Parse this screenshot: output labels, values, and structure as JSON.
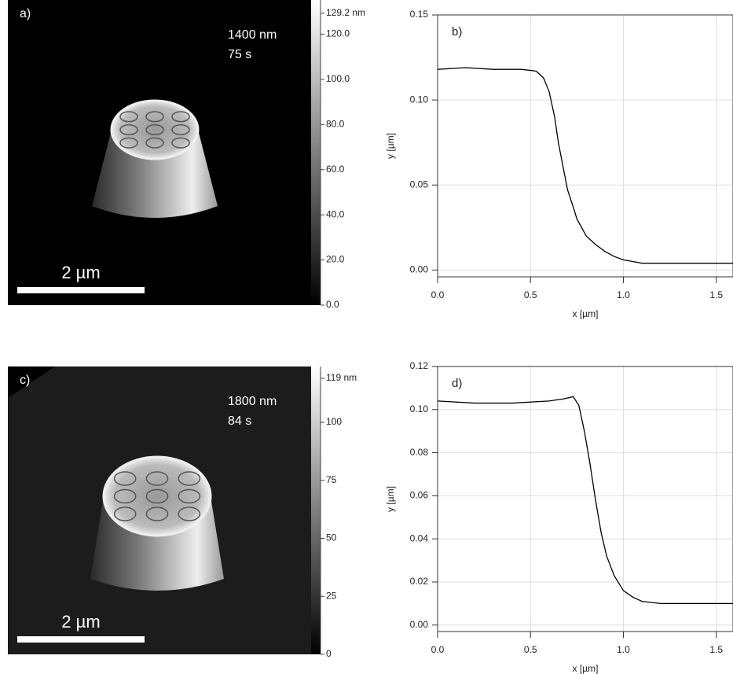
{
  "chart_data": [
    {
      "type": "image",
      "label": "a)",
      "annotations": [
        "1400 nm",
        "75 s"
      ],
      "scale_bar": "2 µm",
      "zlim": [
        0,
        129.2
      ],
      "zticks": [
        {
          "value": 0,
          "label": "0.0"
        },
        {
          "value": 20,
          "label": "20.0"
        },
        {
          "value": 40,
          "label": "40.0"
        },
        {
          "value": 60,
          "label": "60.0"
        },
        {
          "value": 80,
          "label": "80.0"
        },
        {
          "value": 100,
          "label": "100.0"
        },
        {
          "value": 120,
          "label": "120.0"
        },
        {
          "value": 129.2,
          "label": "129.2 nm"
        }
      ]
    },
    {
      "type": "line",
      "label": "b)",
      "xlabel": "x [µm]",
      "ylabel": "y [µm]",
      "color": "#000000",
      "grid": true,
      "x": [
        0,
        0.15,
        0.3,
        0.45,
        0.53,
        0.57,
        0.6,
        0.63,
        0.65,
        0.68,
        0.7,
        0.73,
        0.75,
        0.8,
        0.85,
        0.9,
        0.95,
        1.0,
        1.05,
        1.1,
        1.3,
        1.59
      ],
      "values": [
        0.118,
        0.119,
        0.118,
        0.118,
        0.117,
        0.113,
        0.105,
        0.09,
        0.075,
        0.058,
        0.047,
        0.037,
        0.03,
        0.02,
        0.015,
        0.011,
        0.008,
        0.006,
        0.005,
        0.004,
        0.004,
        0.004
      ],
      "xlim": [
        0,
        1.59
      ],
      "ylim": [
        -0.004,
        0.15
      ],
      "xticks": [
        {
          "value": 0,
          "label": "0.0"
        },
        0.5,
        {
          "value": 1,
          "label": "1.0"
        },
        1.5
      ],
      "yticks": [
        {
          "value": 0,
          "label": "0.00"
        },
        {
          "value": 0.05,
          "label": "0.05"
        },
        {
          "value": 0.1,
          "label": "0.10"
        },
        {
          "value": 0.15,
          "label": "0.15"
        }
      ]
    },
    {
      "type": "image",
      "label": "c)",
      "annotations": [
        "1800 nm",
        "84 s"
      ],
      "scale_bar": "2 µm",
      "zlim": [
        0,
        119
      ],
      "zticks": [
        0,
        25,
        50,
        75,
        100,
        {
          "value": 119,
          "label": "119 nm"
        }
      ]
    },
    {
      "type": "line",
      "label": "d)",
      "xlabel": "x [µm]",
      "ylabel": "y [µm]",
      "color": "#000000",
      "grid": true,
      "x": [
        0,
        0.2,
        0.4,
        0.6,
        0.68,
        0.73,
        0.76,
        0.79,
        0.82,
        0.85,
        0.88,
        0.91,
        0.95,
        1.0,
        1.05,
        1.1,
        1.2,
        1.4,
        1.59
      ],
      "values": [
        0.104,
        0.103,
        0.103,
        0.104,
        0.105,
        0.106,
        0.102,
        0.09,
        0.075,
        0.058,
        0.043,
        0.032,
        0.023,
        0.016,
        0.013,
        0.011,
        0.01,
        0.01,
        0.01
      ],
      "xlim": [
        0,
        1.59
      ],
      "ylim": [
        -0.003,
        0.12
      ],
      "xticks": [
        {
          "value": 0,
          "label": "0.0"
        },
        0.5,
        {
          "value": 1,
          "label": "1.0"
        },
        1.5
      ],
      "yticks": [
        {
          "value": 0,
          "label": "0.00"
        },
        {
          "value": 0.02,
          "label": "0.02"
        },
        {
          "value": 0.04,
          "label": "0.04"
        },
        {
          "value": 0.06,
          "label": "0.06"
        },
        {
          "value": 0.08,
          "label": "0.08"
        },
        {
          "value": 0.1,
          "label": "0.10"
        },
        {
          "value": 0.12,
          "label": "0.12"
        }
      ]
    }
  ]
}
